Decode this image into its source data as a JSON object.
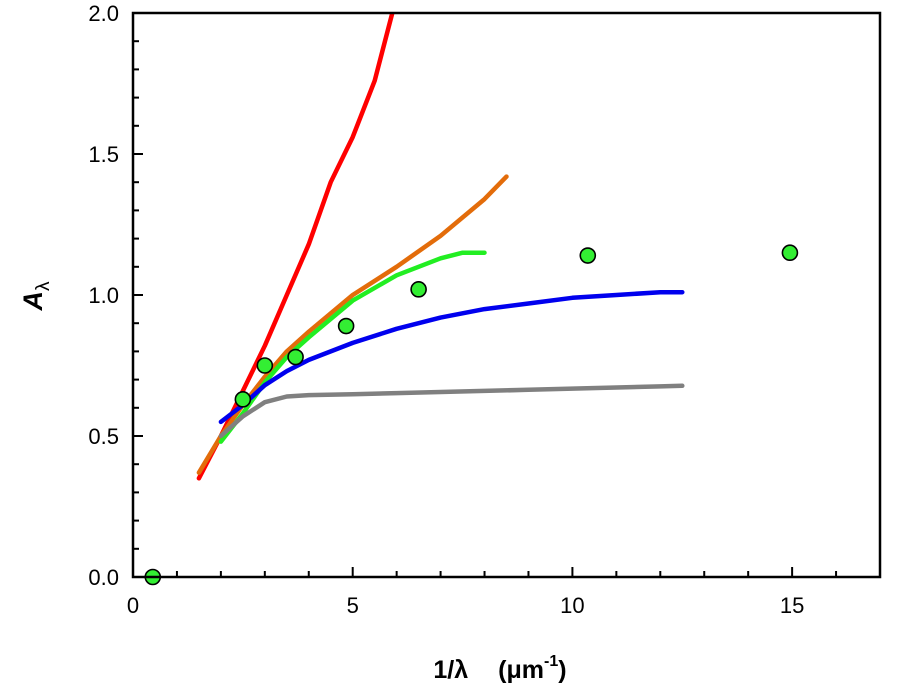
{
  "chart_data": {
    "type": "line",
    "title": "",
    "xlabel": {
      "main": "1/λ",
      "unit_open": "(μm",
      "unit_sup": "-1",
      "unit_close": ")"
    },
    "ylabel": {
      "main": "A",
      "sub": "λ"
    },
    "xlim": [
      0,
      17
    ],
    "ylim": [
      0,
      2
    ],
    "x_ticks": [
      0,
      5,
      10,
      15
    ],
    "x_tick_labels": [
      "0",
      "5",
      "10",
      "15"
    ],
    "x_minor_step": 1,
    "y_ticks": [
      0,
      0.5,
      1,
      1.5,
      2
    ],
    "y_tick_labels": [
      "0.0",
      "0.5",
      "1.0",
      "1.5",
      "2.0"
    ],
    "y_minor_step": 0.1,
    "grid": false,
    "series": [
      {
        "name": "red",
        "color": "#ff0000",
        "x": [
          1.5,
          2.0,
          2.5,
          3.0,
          3.5,
          4.0,
          4.5,
          5.0,
          5.5,
          5.9
        ],
        "y": [
          0.35,
          0.5,
          0.66,
          0.82,
          1.0,
          1.18,
          1.4,
          1.56,
          1.76,
          2.0
        ]
      },
      {
        "name": "orange",
        "color": "#e36c0a",
        "x": [
          1.5,
          2.0,
          2.5,
          3.0,
          3.5,
          4.0,
          5.0,
          6.0,
          7.0,
          8.0,
          8.5
        ],
        "y": [
          0.37,
          0.5,
          0.61,
          0.71,
          0.8,
          0.87,
          1.0,
          1.1,
          1.21,
          1.34,
          1.42
        ]
      },
      {
        "name": "green",
        "color": "#22ee22",
        "x": [
          2.0,
          2.5,
          3.0,
          3.5,
          4.0,
          5.0,
          6.0,
          7.0,
          7.5,
          8.0
        ],
        "y": [
          0.48,
          0.58,
          0.69,
          0.78,
          0.85,
          0.98,
          1.07,
          1.13,
          1.15,
          1.15
        ]
      },
      {
        "name": "blue",
        "color": "#0000ee",
        "x": [
          2.0,
          2.5,
          3.0,
          3.5,
          4.0,
          5.0,
          6.0,
          7.0,
          8.0,
          9.0,
          10.0,
          11.0,
          12.0,
          12.5
        ],
        "y": [
          0.55,
          0.61,
          0.68,
          0.73,
          0.77,
          0.83,
          0.88,
          0.92,
          0.95,
          0.97,
          0.99,
          1.0,
          1.01,
          1.01
        ]
      },
      {
        "name": "gray",
        "color": "#808080",
        "x": [
          2.0,
          2.5,
          3.0,
          3.5,
          4.0,
          5.0,
          6.0,
          7.0,
          8.0,
          9.0,
          10.0,
          11.0,
          12.0,
          12.5
        ],
        "y": [
          0.5,
          0.57,
          0.62,
          0.64,
          0.645,
          0.648,
          0.652,
          0.656,
          0.66,
          0.664,
          0.668,
          0.672,
          0.676,
          0.678
        ]
      }
    ],
    "points": {
      "name": "observed",
      "fill": "#33ee33",
      "stroke": "#000000",
      "x": [
        0.45,
        2.5,
        3.0,
        3.7,
        4.85,
        6.5,
        10.35,
        14.95
      ],
      "y": [
        0.0,
        0.63,
        0.75,
        0.78,
        0.89,
        1.02,
        1.14,
        1.15
      ]
    }
  }
}
